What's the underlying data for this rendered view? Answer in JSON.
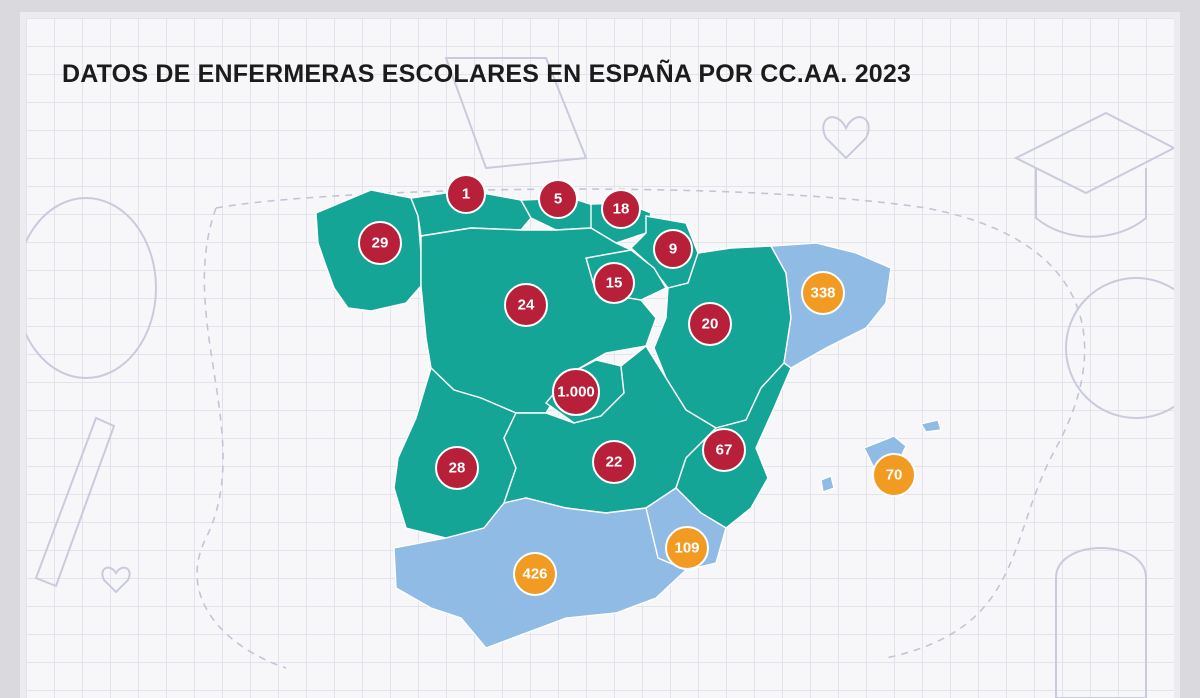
{
  "title": "DATOS DE ENFERMERAS ESCOLARES EN ESPAÑA POR CC.AA. 2023",
  "colors": {
    "region_fill": "#14a597",
    "region_highlight_fill": "#8fbbe4",
    "badge_red": "#b8203a",
    "badge_orange": "#f29b23",
    "background": "#f7f7fa"
  },
  "badges": {
    "asturias": "1",
    "cantabria": "5",
    "pais_vasco": "18",
    "galicia": "29",
    "navarra": "9",
    "la_rioja": "15",
    "castilla_leon": "24",
    "aragon": "20",
    "cataluna": "338",
    "madrid": "1.000",
    "extremadura": "28",
    "castilla_la_mancha": "22",
    "valencia": "67",
    "baleares": "70",
    "murcia": "109",
    "andalucia": "426"
  }
}
